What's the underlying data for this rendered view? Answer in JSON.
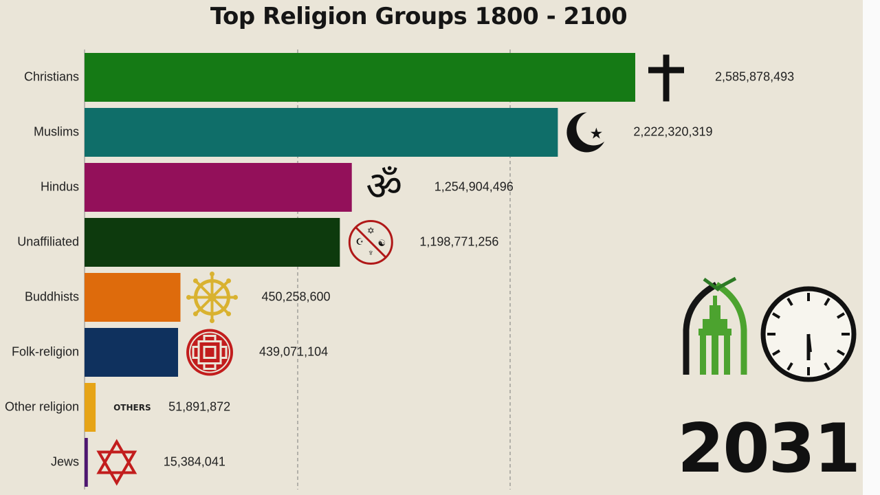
{
  "title": "Top Religion Groups 1800 - 2100",
  "year": "2031",
  "chart_data": {
    "type": "bar",
    "orientation": "horizontal",
    "title": "Top Religion Groups 1800 - 2100",
    "xlim": [
      0,
      2800000000
    ],
    "grid": "vertical dashed",
    "categories": [
      "Christians",
      "Muslims",
      "Hindus",
      "Unaffiliated",
      "Buddhists",
      "Folk-religion",
      "Other religion",
      "Jews"
    ],
    "values": [
      2585878493,
      2222320319,
      1254904496,
      1198771256,
      450258600,
      439071104,
      51891872,
      15384041
    ],
    "value_labels": [
      "2,585,878,493",
      "2,222,320,319",
      "1,254,904,496",
      "1,198,771,256",
      "450,258,600",
      "439,071,104",
      "51,891,872",
      "15,384,041"
    ],
    "colors": [
      "#157a15",
      "#0f6e69",
      "#93105a",
      "#0d3a0d",
      "#de6b0c",
      "#0f315e",
      "#e6a417",
      "#4e1670"
    ],
    "icons": [
      "cross-icon",
      "crescent-star-icon",
      "om-icon",
      "unaffiliated-circle-icon",
      "dharma-wheel-icon",
      "folk-knot-icon",
      "others-text-icon",
      "star-of-david-icon"
    ],
    "others_icon_text": "OTHERS"
  }
}
